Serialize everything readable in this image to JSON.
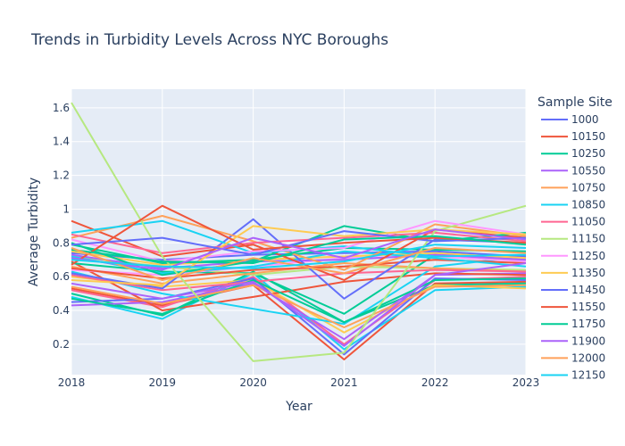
{
  "chart_data": {
    "type": "line",
    "title": "Trends in Turbidity Levels Across NYC Boroughs",
    "xlabel": "Year",
    "ylabel": "Average Turbidity",
    "x": [
      2018,
      2019,
      2020,
      2021,
      2022,
      2023
    ],
    "x_ticks": [
      "2018",
      "2019",
      "2020",
      "2021",
      "2022",
      "2023"
    ],
    "y_ticks": [
      "0.2",
      "0.4",
      "0.6",
      "0.8",
      "1",
      "1.2",
      "1.4",
      "1.6"
    ],
    "ylim": [
      0.02,
      1.71
    ],
    "grid": true,
    "legend_title": "Sample Site",
    "legend_position": "right",
    "plot_background": "#e5ecf6",
    "series": [
      {
        "name": "1000",
        "color": "#636efa",
        "values": [
          0.62,
          0.53,
          0.94,
          0.47,
          0.82,
          0.8
        ]
      },
      {
        "name": "10150",
        "color": "#ef553b",
        "values": [
          0.93,
          0.72,
          0.79,
          0.58,
          0.88,
          0.83
        ]
      },
      {
        "name": "10250",
        "color": "#00cc96",
        "values": [
          0.8,
          0.61,
          0.69,
          0.9,
          0.81,
          0.86
        ]
      },
      {
        "name": "10550",
        "color": "#ab63fa",
        "values": [
          0.56,
          0.47,
          0.57,
          0.19,
          0.61,
          0.68
        ]
      },
      {
        "name": "10750",
        "color": "#ffa15a",
        "values": [
          0.83,
          0.96,
          0.81,
          0.64,
          0.91,
          0.84
        ]
      },
      {
        "name": "10850",
        "color": "#19d3f3",
        "values": [
          0.86,
          0.93,
          0.74,
          0.78,
          0.72,
          0.73
        ]
      },
      {
        "name": "11050",
        "color": "#ff6692",
        "values": [
          0.85,
          0.74,
          0.8,
          0.83,
          0.86,
          0.81
        ]
      },
      {
        "name": "11150",
        "color": "#b6e880",
        "values": [
          1.63,
          0.72,
          0.1,
          0.15,
          0.87,
          1.02
        ]
      },
      {
        "name": "11250",
        "color": "#ff97ff",
        "values": [
          0.82,
          0.69,
          0.75,
          0.77,
          0.93,
          0.85
        ]
      },
      {
        "name": "11350",
        "color": "#fecb52",
        "values": [
          0.58,
          0.55,
          0.9,
          0.84,
          0.88,
          0.85
        ]
      },
      {
        "name": "11450",
        "color": "#636efa",
        "values": [
          0.79,
          0.83,
          0.73,
          0.87,
          0.81,
          0.83
        ]
      },
      {
        "name": "11550",
        "color": "#ef553b",
        "values": [
          0.67,
          1.02,
          0.76,
          0.8,
          0.83,
          0.8
        ]
      },
      {
        "name": "11750",
        "color": "#00cc96",
        "values": [
          0.76,
          0.69,
          0.68,
          0.82,
          0.84,
          0.79
        ]
      },
      {
        "name": "11900",
        "color": "#ab63fa",
        "values": [
          0.71,
          0.64,
          0.83,
          0.71,
          0.88,
          0.82
        ]
      },
      {
        "name": "12000",
        "color": "#ffa15a",
        "values": [
          0.77,
          0.58,
          0.71,
          0.62,
          0.77,
          0.74
        ]
      },
      {
        "name": "12150",
        "color": "#19d3f3",
        "values": [
          0.7,
          0.66,
          0.65,
          0.69,
          0.79,
          0.77
        ]
      }
    ],
    "extra_traces": [
      {
        "color": "#ef553b",
        "values": [
          0.53,
          0.43,
          0.55,
          0.11,
          0.56,
          0.57
        ]
      },
      {
        "color": "#19d3f3",
        "values": [
          0.48,
          0.35,
          0.62,
          0.17,
          0.52,
          0.54
        ]
      },
      {
        "color": "#00cc96",
        "values": [
          0.5,
          0.37,
          0.63,
          0.33,
          0.55,
          0.56
        ]
      },
      {
        "color": "#ff6692",
        "values": [
          0.52,
          0.42,
          0.6,
          0.2,
          0.58,
          0.6
        ]
      },
      {
        "color": "#fecb52",
        "values": [
          0.6,
          0.54,
          0.58,
          0.27,
          0.55,
          0.53
        ]
      },
      {
        "color": "#636efa",
        "values": [
          0.45,
          0.47,
          0.59,
          0.14,
          0.59,
          0.58
        ]
      },
      {
        "color": "#ab63fa",
        "values": [
          0.43,
          0.45,
          0.56,
          0.23,
          0.61,
          0.62
        ]
      },
      {
        "color": "#ef553b",
        "values": [
          0.69,
          0.4,
          0.48,
          0.57,
          0.62,
          0.61
        ]
      },
      {
        "color": "#19d3f3",
        "values": [
          0.63,
          0.5,
          0.41,
          0.32,
          0.66,
          0.72
        ]
      },
      {
        "color": "#00cc96",
        "values": [
          0.68,
          0.63,
          0.62,
          0.38,
          0.73,
          0.7
        ]
      },
      {
        "color": "#b6e880",
        "values": [
          0.72,
          0.66,
          0.61,
          0.66,
          0.65,
          0.64
        ]
      },
      {
        "color": "#ffa15a",
        "values": [
          0.66,
          0.56,
          0.62,
          0.68,
          0.65,
          0.63
        ]
      },
      {
        "color": "#ff97ff",
        "values": [
          0.64,
          0.61,
          0.66,
          0.71,
          0.72,
          0.69
        ]
      },
      {
        "color": "#636efa",
        "values": [
          0.74,
          0.7,
          0.73,
          0.74,
          0.75,
          0.72
        ]
      },
      {
        "color": "#fecb52",
        "values": [
          0.75,
          0.67,
          0.7,
          0.72,
          0.74,
          0.71
        ]
      },
      {
        "color": "#00cc96",
        "values": [
          0.79,
          0.68,
          0.7,
          0.77,
          0.76,
          0.75
        ]
      },
      {
        "color": "#ef553b",
        "values": [
          0.65,
          0.59,
          0.64,
          0.66,
          0.7,
          0.68
        ]
      },
      {
        "color": "#ab63fa",
        "values": [
          0.73,
          0.65,
          0.69,
          0.7,
          0.73,
          0.7
        ]
      },
      {
        "color": "#ff6692",
        "values": [
          0.61,
          0.52,
          0.57,
          0.62,
          0.64,
          0.63
        ]
      },
      {
        "color": "#19d3f3",
        "values": [
          0.72,
          0.62,
          0.66,
          0.75,
          0.71,
          0.66
        ]
      },
      {
        "color": "#00cc96",
        "values": [
          0.47,
          0.38,
          0.58,
          0.33,
          0.58,
          0.59
        ]
      },
      {
        "color": "#ffa15a",
        "values": [
          0.54,
          0.44,
          0.55,
          0.3,
          0.54,
          0.55
        ]
      }
    ]
  }
}
